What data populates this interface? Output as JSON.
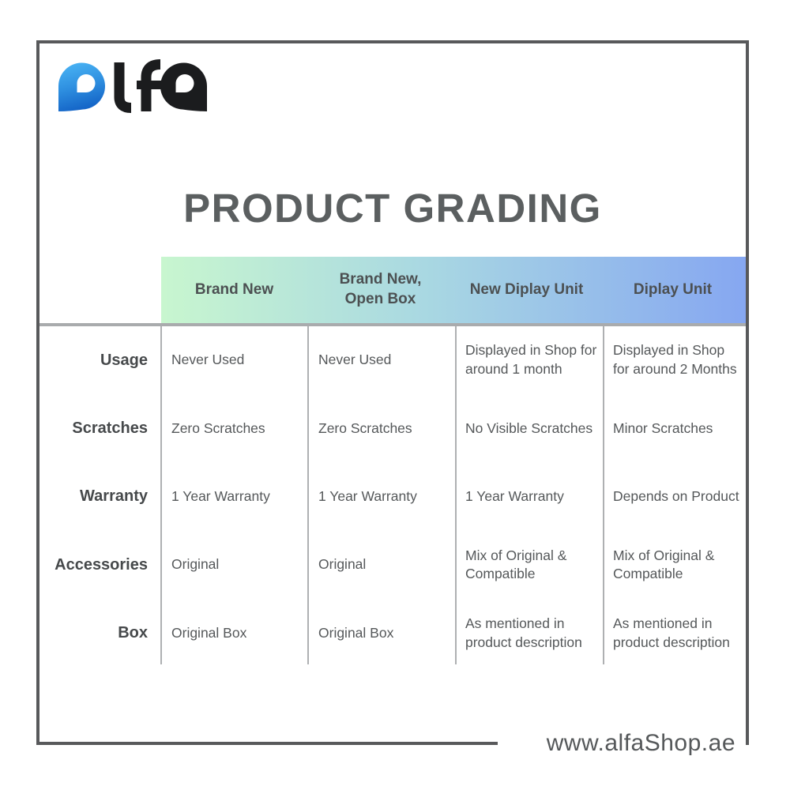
{
  "logo": {
    "text": "alfa",
    "colors": {
      "blue_top": "#4cb7f6",
      "blue_bottom": "#1566c8",
      "dark": "#1b1c1e"
    }
  },
  "title": {
    "text": "PRODUCT GRADING"
  },
  "table": {
    "columns": [
      "Brand New",
      "Brand New, Open Box",
      "New Diplay Unit",
      "Diplay Unit"
    ],
    "rows": [
      {
        "label": "Usage",
        "values": [
          "Never Used",
          "Never Used",
          "Displayed in Shop for around 1 month",
          "Displayed in Shop for around 2 Months"
        ]
      },
      {
        "label": "Scratches",
        "values": [
          "Zero Scratches",
          "Zero Scratches",
          "No Visible Scratches",
          "Minor Scratches"
        ]
      },
      {
        "label": "Warranty",
        "values": [
          "1 Year Warranty",
          "1 Year Warranty",
          "1 Year Warranty",
          "Depends on Product"
        ]
      },
      {
        "label": "Accessories",
        "values": [
          "Original",
          "Original",
          "Mix of Original & Compatible",
          "Mix of Original & Compatible"
        ]
      },
      {
        "label": "Box",
        "values": [
          "Original Box",
          "Original Box",
          "As mentioned in product description",
          "As mentioned in product description"
        ]
      }
    ]
  },
  "footer": {
    "website": "www.alfaShop.ae"
  },
  "colors": {
    "frame_border": "#58595b",
    "header_gradient_left": "#c8f6cf",
    "header_gradient_mid": "#a9d8e2",
    "header_gradient_right": "#86a7f1",
    "header_text": "#4c5052",
    "title_text": "#5b5f60",
    "row_label_text": "#46494b",
    "cell_text": "#55585a",
    "grid_line": "#aeb0b2",
    "grid_line_strong": "#a9abad"
  }
}
